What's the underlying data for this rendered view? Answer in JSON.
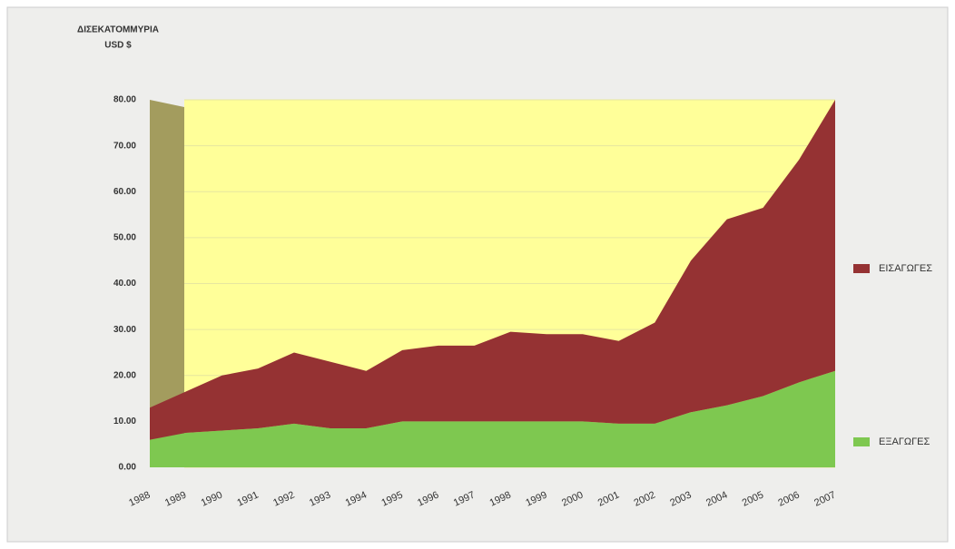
{
  "chart_data": {
    "type": "area",
    "stacked": true,
    "y_label": [
      "ΔΙΣΕΚΑΤΟΜΜΥΡΙΑ",
      "USD $"
    ],
    "categories": [
      "1988",
      "1989",
      "1990",
      "1991",
      "1992",
      "1993",
      "1994",
      "1995",
      "1996",
      "1997",
      "1998",
      "1999",
      "2000",
      "2001",
      "2002",
      "2003",
      "2004",
      "2005",
      "2006",
      "2007"
    ],
    "series": [
      {
        "name": "ΕΞΑΓΩΓΕΣ",
        "color": "#7ec850",
        "values": [
          6,
          7.5,
          8,
          8.5,
          9.5,
          8.5,
          8.5,
          10,
          10,
          10,
          10,
          10,
          10,
          9.5,
          9.5,
          12,
          13.5,
          15.5,
          18.5,
          21
        ]
      },
      {
        "name": "ΕΙΣΑΓΩΓΕΣ",
        "color": "#953233",
        "values": [
          7,
          9,
          12,
          13,
          15.5,
          14.5,
          12.5,
          15.5,
          16.5,
          16.5,
          19.5,
          19,
          19,
          18,
          22,
          33,
          40.5,
          41,
          48.5,
          59
        ]
      }
    ],
    "ylim": [
      0,
      80
    ],
    "yticks": [
      {
        "value": 0,
        "label": "0.00"
      },
      {
        "value": 10,
        "label": "10.00"
      },
      {
        "value": 20,
        "label": "20.00"
      },
      {
        "value": 30,
        "label": "30.00"
      },
      {
        "value": 40,
        "label": "40.00"
      },
      {
        "value": 50,
        "label": "50.00"
      },
      {
        "value": 60,
        "label": "60.00"
      },
      {
        "value": 70,
        "label": "70.00"
      },
      {
        "value": 80,
        "label": "80.00"
      }
    ],
    "grid": true,
    "legend": "right"
  }
}
